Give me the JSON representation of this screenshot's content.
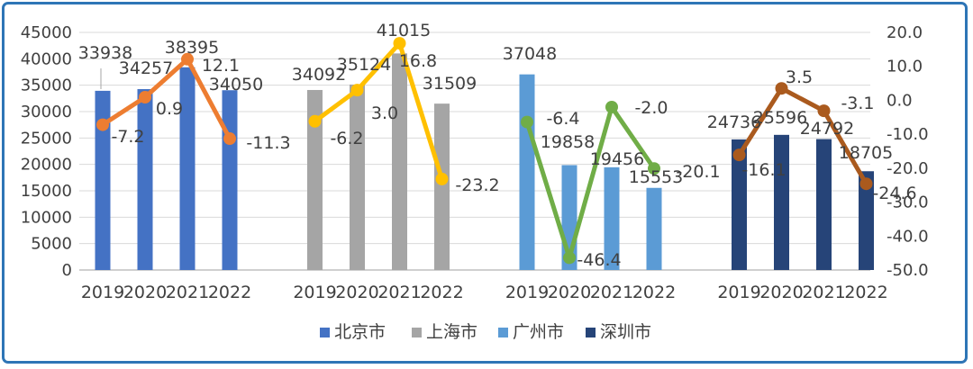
{
  "colors": {
    "frame_border": "#2E75B6",
    "gridline": "#D9D9D9",
    "axis_line": "#BFBFBF",
    "text": "#404040",
    "leader_line": "#A6A6A6"
  },
  "chart_data": {
    "type": "bar+line combo, dual axis",
    "title": "",
    "years": [
      "2019",
      "2020",
      "2021",
      "2022"
    ],
    "left_axis": {
      "min": 0,
      "max": 45000,
      "step": 5000,
      "tick_labels": [
        "45000",
        "40000",
        "35000",
        "30000",
        "25000",
        "20000",
        "15000",
        "10000",
        "5000",
        "0"
      ]
    },
    "right_axis": {
      "min": -50,
      "max": 20,
      "step": 10,
      "tick_labels": [
        "20.0",
        "10.0",
        "0.0",
        "-10.0",
        "-20.0",
        "-30.0",
        "-40.0",
        "-50.0"
      ]
    },
    "grid": "horizontal gridlines on",
    "legend_position": "bottom",
    "series": [
      {
        "key": "beijing",
        "name": "北京市",
        "bar_color": "#4472C4",
        "line_color": "#ED7D31",
        "bar_values": [
          33938,
          34257,
          38395,
          34050
        ],
        "line_values": [
          "-7.2",
          "0.9",
          "12.1",
          "-11.3"
        ]
      },
      {
        "key": "shanghai",
        "name": "上海市",
        "bar_color": "#A5A5A5",
        "line_color": "#FFC000",
        "bar_values": [
          34092,
          35124,
          41015,
          31509
        ],
        "line_values": [
          "-6.2",
          "3.0",
          "16.8",
          "-23.2"
        ]
      },
      {
        "key": "guangzhou",
        "name": "广州市",
        "bar_color": "#5B9BD5",
        "line_color": "#70AD47",
        "bar_values": [
          37048,
          19858,
          19456,
          15553
        ],
        "line_values": [
          "-6.4",
          "-46.4",
          "-2.0",
          "-20.1"
        ]
      },
      {
        "key": "shenzhen",
        "name": "深圳市",
        "bar_color": "#264478",
        "line_color": "#AA5A1E",
        "bar_values": [
          24736,
          25596,
          24792,
          18705
        ],
        "line_values": [
          "-16.1",
          "3.5",
          "-3.1",
          "-24.6"
        ]
      }
    ]
  }
}
